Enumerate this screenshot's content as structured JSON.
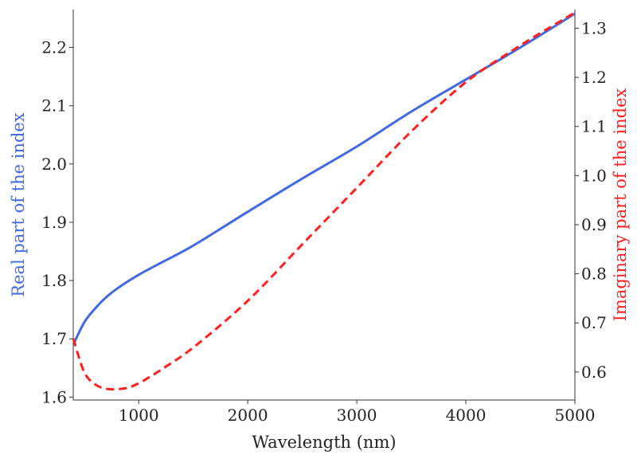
{
  "chart_data": {
    "type": "line",
    "title": "",
    "xlabel": "Wavelength (nm)",
    "ylabel": "Real part of the index",
    "y2label": "Imaginary part of the index",
    "xlim": [
      400,
      5000
    ],
    "ylim": [
      1.595,
      2.265
    ],
    "y2lim": [
      0.543,
      1.338
    ],
    "grid": false,
    "legend": "none",
    "x_ticks": [
      1000,
      2000,
      3000,
      4000,
      5000
    ],
    "y_ticks": [
      1.6,
      1.7,
      1.8,
      1.9,
      2.0,
      2.1,
      2.2
    ],
    "y2_ticks": [
      0.6,
      0.7,
      0.8,
      0.9,
      1.0,
      1.1,
      1.2,
      1.3
    ],
    "x_tick_labels": [
      "1000",
      "2000",
      "3000",
      "4000",
      "5000"
    ],
    "y_tick_labels": [
      "1.6",
      "1.7",
      "1.8",
      "1.9",
      "2.0",
      "2.1",
      "2.2"
    ],
    "y2_tick_labels": [
      "0.6",
      "0.7",
      "0.8",
      "0.9",
      "1.0",
      "1.1",
      "1.2",
      "1.3"
    ],
    "series": [
      {
        "axis": "left",
        "color": "#4169e1",
        "style": "solid",
        "x": [
          400,
          500,
          600,
          700,
          800,
          1000,
          1200,
          1500,
          2000,
          2500,
          3000,
          3500,
          4000,
          4500,
          5000
        ],
        "values": [
          1.69,
          1.728,
          1.752,
          1.771,
          1.786,
          1.81,
          1.83,
          1.86,
          1.918,
          1.975,
          2.03,
          2.09,
          2.145,
          2.2,
          2.258
        ]
      },
      {
        "axis": "right",
        "color": "#ff2020",
        "style": "dashed",
        "x": [
          400,
          500,
          600,
          700,
          800,
          900,
          1000,
          1100,
          1200,
          1500,
          2000,
          2500,
          3000,
          3500,
          4000,
          4500,
          5000
        ],
        "values": [
          0.668,
          0.6,
          0.575,
          0.566,
          0.565,
          0.568,
          0.577,
          0.59,
          0.604,
          0.65,
          0.745,
          0.86,
          0.975,
          1.09,
          1.19,
          1.265,
          1.332
        ]
      }
    ]
  }
}
